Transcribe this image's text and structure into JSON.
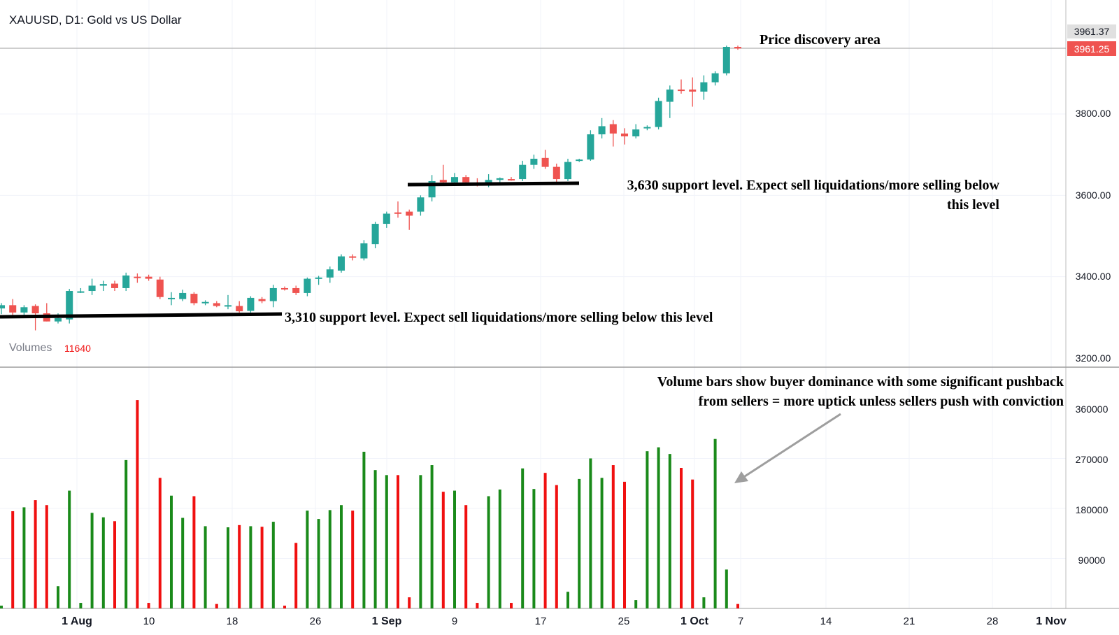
{
  "header": {
    "symbol_title": "XAUUSD, D1: Gold vs US Dollar",
    "volumes_label": "Volumes",
    "volumes_value": "11640"
  },
  "price_axis": {
    "labels": [
      "3961.37",
      "3961.25",
      "3800.00",
      "3600.00",
      "3400.00",
      "3200.00"
    ]
  },
  "volume_axis": {
    "labels": [
      "360000",
      "270000",
      "180000",
      "90000"
    ]
  },
  "time_axis": {
    "labels": [
      "1 Aug",
      "10",
      "18",
      "26",
      "1 Sep",
      "9",
      "17",
      "25",
      "1 Oct",
      "7",
      "14",
      "21",
      "28",
      "1 Nov"
    ]
  },
  "annotations": {
    "price_discovery": "Price discovery area",
    "support_3630_line1": "3,630 support level. Expect sell liquidations/more selling below",
    "support_3630_line2": "this level",
    "support_3310": "3,310 support level. Expect sell liquidations/more selling below this level",
    "volume_note_line1": "Volume bars show buyer dominance with some significant pushback",
    "volume_note_line2": "from sellers = more uptick unless sellers push with conviction"
  },
  "colors": {
    "up_candle": "#26a69a",
    "down_candle": "#ef5350",
    "up_volume": "#1a8a1a",
    "down_volume": "#f01010",
    "last_price_bg": "#ef5350",
    "prev_price_bg": "#e0e0e0"
  },
  "chart_data": {
    "type": "candlestick",
    "symbol": "XAUUSD",
    "timeframe": "D1",
    "price_range": [
      3180,
      4000
    ],
    "volume_range": [
      0,
      400000
    ],
    "support_levels": [
      3310,
      3630
    ],
    "last_price": 3961.25,
    "previous_close": 3961.37,
    "candles": [
      {
        "date": "2025-07-22",
        "open": 3322,
        "high": 3335,
        "low": 3308,
        "close": 3330,
        "volume": 5000
      },
      {
        "date": "2025-07-23",
        "open": 3330,
        "high": 3345,
        "low": 3305,
        "close": 3312,
        "volume": 175000
      },
      {
        "date": "2025-07-24",
        "open": 3312,
        "high": 3330,
        "low": 3300,
        "close": 3325,
        "volume": 182000
      },
      {
        "date": "2025-07-25",
        "open": 3328,
        "high": 3332,
        "low": 3268,
        "close": 3310,
        "volume": 195000
      },
      {
        "date": "2025-07-28",
        "open": 3310,
        "high": 3335,
        "low": 3290,
        "close": 3290,
        "volume": 186000
      },
      {
        "date": "2025-07-29",
        "open": 3290,
        "high": 3310,
        "low": 3285,
        "close": 3298,
        "volume": 40000
      },
      {
        "date": "2025-07-30",
        "open": 3295,
        "high": 3370,
        "low": 3285,
        "close": 3365,
        "volume": 212000
      },
      {
        "date": "2025-07-31",
        "open": 3362,
        "high": 3372,
        "low": 3360,
        "close": 3364,
        "volume": 10000
      },
      {
        "date": "2025-08-01",
        "open": 3365,
        "high": 3395,
        "low": 3355,
        "close": 3378,
        "volume": 172000
      },
      {
        "date": "2025-08-04",
        "open": 3378,
        "high": 3390,
        "low": 3365,
        "close": 3382,
        "volume": 164000
      },
      {
        "date": "2025-08-05",
        "open": 3383,
        "high": 3390,
        "low": 3365,
        "close": 3372,
        "volume": 157000
      },
      {
        "date": "2025-08-06",
        "open": 3372,
        "high": 3410,
        "low": 3365,
        "close": 3403,
        "volume": 267000
      },
      {
        "date": "2025-08-07",
        "open": 3400,
        "high": 3408,
        "low": 3385,
        "close": 3398,
        "volume": 375000
      },
      {
        "date": "2025-08-08",
        "open": 3400,
        "high": 3405,
        "low": 3390,
        "close": 3395,
        "volume": 10000
      },
      {
        "date": "2025-08-11",
        "open": 3393,
        "high": 3400,
        "low": 3345,
        "close": 3350,
        "volume": 235000
      },
      {
        "date": "2025-08-12",
        "open": 3348,
        "high": 3362,
        "low": 3330,
        "close": 3348,
        "volume": 203000
      },
      {
        "date": "2025-08-13",
        "open": 3345,
        "high": 3368,
        "low": 3340,
        "close": 3360,
        "volume": 163000
      },
      {
        "date": "2025-08-14",
        "open": 3358,
        "high": 3362,
        "low": 3330,
        "close": 3335,
        "volume": 202000
      },
      {
        "date": "2025-08-15",
        "open": 3336,
        "high": 3342,
        "low": 3330,
        "close": 3338,
        "volume": 148000
      },
      {
        "date": "2025-08-18",
        "open": 3335,
        "high": 3340,
        "low": 3325,
        "close": 3328,
        "volume": 8000
      },
      {
        "date": "2025-08-19",
        "open": 3328,
        "high": 3355,
        "low": 3320,
        "close": 3330,
        "volume": 146000
      },
      {
        "date": "2025-08-20",
        "open": 3328,
        "high": 3340,
        "low": 3312,
        "close": 3315,
        "volume": 150000
      },
      {
        "date": "2025-08-21",
        "open": 3316,
        "high": 3352,
        "low": 3312,
        "close": 3348,
        "volume": 148000
      },
      {
        "date": "2025-08-22",
        "open": 3345,
        "high": 3350,
        "low": 3335,
        "close": 3340,
        "volume": 147000
      },
      {
        "date": "2025-08-25",
        "open": 3340,
        "high": 3380,
        "low": 3325,
        "close": 3372,
        "volume": 156000
      },
      {
        "date": "2025-08-26",
        "open": 3372,
        "high": 3376,
        "low": 3366,
        "close": 3370,
        "volume": 5000
      },
      {
        "date": "2025-08-27",
        "open": 3372,
        "high": 3378,
        "low": 3355,
        "close": 3360,
        "volume": 118000
      },
      {
        "date": "2025-08-28",
        "open": 3360,
        "high": 3398,
        "low": 3352,
        "close": 3395,
        "volume": 176000
      },
      {
        "date": "2025-08-29",
        "open": 3395,
        "high": 3402,
        "low": 3380,
        "close": 3398,
        "volume": 161000
      },
      {
        "date": "2025-09-01",
        "open": 3398,
        "high": 3425,
        "low": 3385,
        "close": 3418,
        "volume": 177000
      },
      {
        "date": "2025-09-02",
        "open": 3415,
        "high": 3455,
        "low": 3410,
        "close": 3450,
        "volume": 186000
      },
      {
        "date": "2025-09-03",
        "open": 3450,
        "high": 3455,
        "low": 3440,
        "close": 3448,
        "volume": 176000
      },
      {
        "date": "2025-09-04",
        "open": 3445,
        "high": 3490,
        "low": 3440,
        "close": 3482,
        "volume": 282000
      },
      {
        "date": "2025-09-05",
        "open": 3480,
        "high": 3535,
        "low": 3470,
        "close": 3530,
        "volume": 249000
      },
      {
        "date": "2025-09-08",
        "open": 3530,
        "high": 3560,
        "low": 3520,
        "close": 3555,
        "volume": 240000
      },
      {
        "date": "2025-09-09",
        "open": 3558,
        "high": 3585,
        "low": 3545,
        "close": 3555,
        "volume": 240000
      },
      {
        "date": "2025-09-10",
        "open": 3560,
        "high": 3565,
        "low": 3515,
        "close": 3550,
        "volume": 20000
      },
      {
        "date": "2025-09-11",
        "open": 3560,
        "high": 3600,
        "low": 3550,
        "close": 3595,
        "volume": 240000
      },
      {
        "date": "2025-09-12",
        "open": 3595,
        "high": 3650,
        "low": 3585,
        "close": 3635,
        "volume": 258000
      },
      {
        "date": "2025-09-15",
        "open": 3638,
        "high": 3675,
        "low": 3630,
        "close": 3632,
        "volume": 210000
      },
      {
        "date": "2025-09-16",
        "open": 3632,
        "high": 3655,
        "low": 3625,
        "close": 3645,
        "volume": 212000
      },
      {
        "date": "2025-09-17",
        "open": 3645,
        "high": 3650,
        "low": 3625,
        "close": 3632,
        "volume": 186000
      },
      {
        "date": "2025-09-18",
        "open": 3630,
        "high": 3642,
        "low": 3622,
        "close": 3625,
        "volume": 10000
      },
      {
        "date": "2025-09-19",
        "open": 3630,
        "high": 3652,
        "low": 3620,
        "close": 3638,
        "volume": 202000
      },
      {
        "date": "2025-09-22",
        "open": 3638,
        "high": 3644,
        "low": 3632,
        "close": 3642,
        "volume": 214000
      },
      {
        "date": "2025-09-23",
        "open": 3640,
        "high": 3645,
        "low": 3636,
        "close": 3638,
        "volume": 10000
      },
      {
        "date": "2025-09-24",
        "open": 3640,
        "high": 3685,
        "low": 3635,
        "close": 3675,
        "volume": 252000
      },
      {
        "date": "2025-09-25",
        "open": 3675,
        "high": 3700,
        "low": 3665,
        "close": 3690,
        "volume": 215000
      },
      {
        "date": "2025-09-26",
        "open": 3692,
        "high": 3712,
        "low": 3665,
        "close": 3670,
        "volume": 244000
      },
      {
        "date": "2025-09-29",
        "open": 3670,
        "high": 3678,
        "low": 3630,
        "close": 3640,
        "volume": 222000
      },
      {
        "date": "2025-09-30",
        "open": 3640,
        "high": 3690,
        "low": 3635,
        "close": 3682,
        "volume": 30000
      },
      {
        "date": "2025-10-01",
        "open": 3685,
        "high": 3690,
        "low": 3682,
        "close": 3688,
        "volume": 233000
      },
      {
        "date": "2025-10-02",
        "open": 3688,
        "high": 3760,
        "low": 3685,
        "close": 3750,
        "volume": 270000
      },
      {
        "date": "2025-10-03",
        "open": 3750,
        "high": 3790,
        "low": 3740,
        "close": 3770,
        "volume": 235000
      },
      {
        "date": "2025-10-06",
        "open": 3775,
        "high": 3785,
        "low": 3720,
        "close": 3752,
        "volume": 258000
      },
      {
        "date": "2025-10-07",
        "open": 3752,
        "high": 3765,
        "low": 3725,
        "close": 3745,
        "volume": 228000
      },
      {
        "date": "2025-10-08",
        "open": 3745,
        "high": 3775,
        "low": 3740,
        "close": 3762,
        "volume": 15000
      },
      {
        "date": "2025-10-09",
        "open": 3765,
        "high": 3772,
        "low": 3760,
        "close": 3768,
        "volume": 283000
      },
      {
        "date": "2025-10-10",
        "open": 3768,
        "high": 3840,
        "low": 3762,
        "close": 3832,
        "volume": 290000
      },
      {
        "date": "2025-10-13",
        "open": 3830,
        "high": 3870,
        "low": 3790,
        "close": 3860,
        "volume": 278000
      },
      {
        "date": "2025-10-14",
        "open": 3860,
        "high": 3885,
        "low": 3850,
        "close": 3858,
        "volume": 253000
      },
      {
        "date": "2025-10-15",
        "open": 3860,
        "high": 3890,
        "low": 3818,
        "close": 3855,
        "volume": 232000
      },
      {
        "date": "2025-10-16",
        "open": 3855,
        "high": 3895,
        "low": 3835,
        "close": 3878,
        "volume": 20000
      },
      {
        "date": "2025-10-17",
        "open": 3878,
        "high": 3905,
        "low": 3870,
        "close": 3900,
        "volume": 305000
      },
      {
        "date": "2025-10-20",
        "open": 3900,
        "high": 3968,
        "low": 3895,
        "close": 3965,
        "volume": 70000
      },
      {
        "date": "2025-10-21",
        "open": 3965,
        "high": 3968,
        "low": 3958,
        "close": 3961,
        "volume": 8000
      }
    ]
  }
}
